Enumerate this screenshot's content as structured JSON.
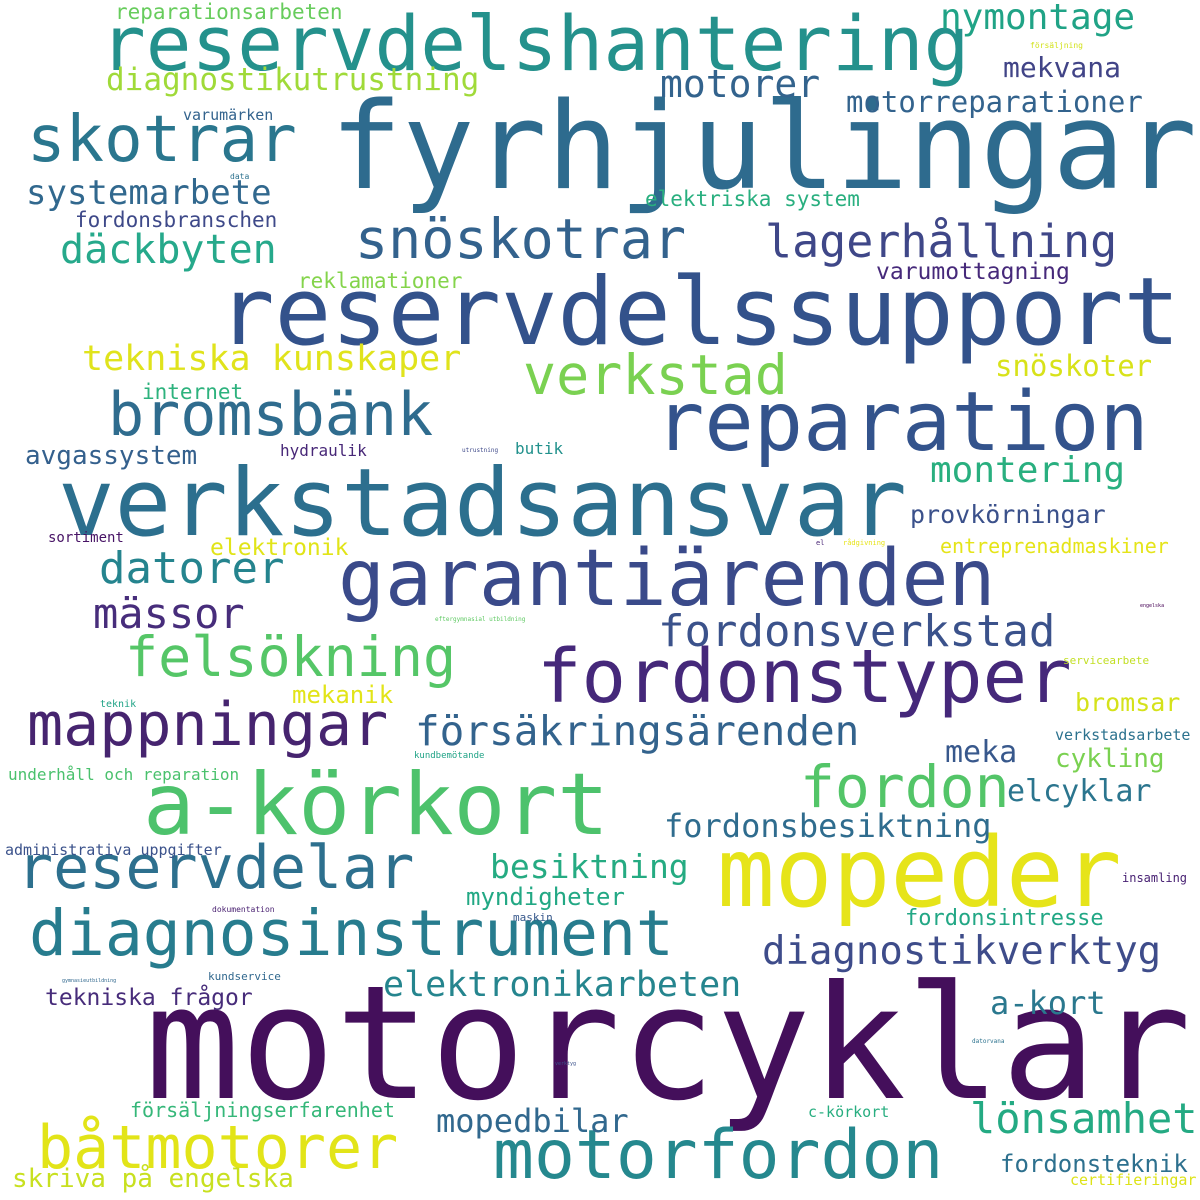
{
  "words": [
    {
      "text": "motorcyklar",
      "color": "#440f5b"
    },
    {
      "text": "fyrhjulingar",
      "color": "#2e6b8e"
    },
    {
      "text": "reservdelssupport",
      "color": "#33528b"
    },
    {
      "text": "verkstadsansvar",
      "color": "#2c6f8e"
    },
    {
      "text": "reservdelshantering",
      "color": "#24918c"
    },
    {
      "text": "garantiärenden",
      "color": "#3a4a8a"
    },
    {
      "text": "reparation",
      "color": "#33538c"
    },
    {
      "text": "a-körkort",
      "color": "#4dc26c"
    },
    {
      "text": "mopeder",
      "color": "#e6e419"
    },
    {
      "text": "fordonstyper",
      "color": "#45287a"
    },
    {
      "text": "diagnosinstrument",
      "color": "#277c8e"
    },
    {
      "text": "motorfordon",
      "color": "#25888e"
    },
    {
      "text": "snöskotrar",
      "color": "#33628d"
    },
    {
      "text": "skotrar",
      "color": "#2a768e"
    },
    {
      "text": "bromsbänk",
      "color": "#2f6c8e"
    },
    {
      "text": "lagerhållning",
      "color": "#3f4788"
    },
    {
      "text": "mappningar",
      "color": "#46246f"
    },
    {
      "text": "reservdelar",
      "color": "#2d708e"
    },
    {
      "text": "båtmotorer",
      "color": "#e2e418"
    },
    {
      "text": "felsökning",
      "color": "#55c667"
    },
    {
      "text": "verkstad",
      "color": "#7ad151"
    },
    {
      "text": "fordon",
      "color": "#53c568"
    },
    {
      "text": "försäkringsärenden",
      "color": "#33638d"
    },
    {
      "text": "fordonsverkstad",
      "color": "#3b528b"
    },
    {
      "text": "diagnostikverktyg",
      "color": "#3e4c8a"
    },
    {
      "text": "tekniska kunskaper",
      "color": "#e0e31c"
    },
    {
      "text": "elektronikarbeten",
      "color": "#25858e"
    },
    {
      "text": "datorer",
      "color": "#25848e"
    },
    {
      "text": "däckbyten",
      "color": "#26a98b"
    },
    {
      "text": "systemarbete",
      "color": "#31688e"
    },
    {
      "text": "mässor",
      "color": "#472d7b"
    },
    {
      "text": "nymontage",
      "color": "#20a386"
    },
    {
      "text": "lönsamhet",
      "color": "#24aa83"
    },
    {
      "text": "motorer",
      "color": "#33638d"
    },
    {
      "text": "diagnostikutrustning",
      "color": "#a0da39"
    },
    {
      "text": "montering",
      "color": "#29af7f"
    },
    {
      "text": "fordonsbesiktning",
      "color": "#2f6c8e"
    },
    {
      "text": "besiktning",
      "color": "#25ab82"
    },
    {
      "text": "elcyklar",
      "color": "#2b758e"
    },
    {
      "text": "motorreparationer",
      "color": "#33638d"
    },
    {
      "text": "mekvana",
      "color": "#414487"
    },
    {
      "text": "provkörningar",
      "color": "#3b518b"
    },
    {
      "text": "a-kort",
      "color": "#2a788e"
    },
    {
      "text": "mopedbilar",
      "color": "#31688e"
    },
    {
      "text": "varumottagning",
      "color": "#46297a"
    },
    {
      "text": "tekniska frågor",
      "color": "#472c7a"
    },
    {
      "text": "avgassystem",
      "color": "#34608d"
    },
    {
      "text": "snöskoter",
      "color": "#d8e219"
    },
    {
      "text": "meka",
      "color": "#38588c"
    },
    {
      "text": "myndigheter",
      "color": "#22a884"
    },
    {
      "text": "cykling",
      "color": "#7ad151"
    },
    {
      "text": "fordonsteknik",
      "color": "#2d708e"
    },
    {
      "text": "skriva på engelska",
      "color": "#c8e020"
    },
    {
      "text": "bromsar",
      "color": "#d5e21a"
    },
    {
      "text": "entreprenadmaskiner",
      "color": "#e5e419"
    },
    {
      "text": "försäljningserfarenhet",
      "color": "#35b779"
    },
    {
      "text": "reparationsarbeten",
      "color": "#67cc5c"
    },
    {
      "text": "fordonsintresse",
      "color": "#22a785"
    },
    {
      "text": "elektronik",
      "color": "#e1e418"
    },
    {
      "text": "mekanik",
      "color": "#e2e418"
    },
    {
      "text": "elektriska system",
      "color": "#29af7f"
    },
    {
      "text": "fordonsbranschen",
      "color": "#3e4989"
    },
    {
      "text": "reklamationer",
      "color": "#84d44b"
    },
    {
      "text": "internet",
      "color": "#2db27d"
    },
    {
      "text": "hydraulik",
      "color": "#482878"
    },
    {
      "text": "butik",
      "color": "#21918c"
    },
    {
      "text": "underhåll och reparation",
      "color": "#4ac16d"
    },
    {
      "text": "administrativa uppgifter",
      "color": "#3b528b"
    },
    {
      "text": "sortiment",
      "color": "#471365"
    },
    {
      "text": "varumärken",
      "color": "#33638d"
    },
    {
      "text": "certifieringar",
      "color": "#dde318"
    },
    {
      "text": "verkstadsarbete",
      "color": "#2c728e"
    },
    {
      "text": "c-körkort",
      "color": "#28ae80"
    },
    {
      "text": "maskin",
      "color": "#38598c"
    },
    {
      "text": "insamling",
      "color": "#482173"
    },
    {
      "text": "servicearbete",
      "color": "#c2df23"
    },
    {
      "text": "kundservice",
      "color": "#31688e"
    },
    {
      "text": "teknik",
      "color": "#20a386"
    },
    {
      "text": "kundbemötande",
      "color": "#20a386"
    },
    {
      "text": "dokumentation",
      "color": "#481f70"
    },
    {
      "text": "data",
      "color": "#2c718e"
    },
    {
      "text": "försäljning",
      "color": "#d2e21b"
    },
    {
      "text": "rådgivning",
      "color": "#e7e419"
    },
    {
      "text": "el",
      "color": "#482475"
    },
    {
      "text": "utrustning",
      "color": "#3e4989"
    },
    {
      "text": "eftergymnasial utbildning",
      "color": "#5ec962"
    },
    {
      "text": "engelska",
      "color": "#440154"
    },
    {
      "text": "gymnasieutbildning",
      "color": "#31688e"
    },
    {
      "text": "datorvana",
      "color": "#2c728e"
    },
    {
      "text": "verktyg",
      "color": "#3b528b"
    }
  ]
}
